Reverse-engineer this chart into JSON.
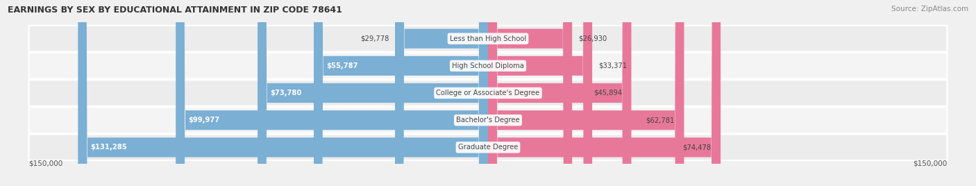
{
  "title": "EARNINGS BY SEX BY EDUCATIONAL ATTAINMENT IN ZIP CODE 78641",
  "source": "Source: ZipAtlas.com",
  "categories": [
    "Less than High School",
    "High School Diploma",
    "College or Associate's Degree",
    "Bachelor's Degree",
    "Graduate Degree"
  ],
  "male_values": [
    29778,
    55787,
    73780,
    99977,
    131285
  ],
  "female_values": [
    26930,
    33371,
    45894,
    62781,
    74478
  ],
  "male_color": "#7bafd4",
  "female_color": "#e8789a",
  "max_val": 150000,
  "row_colors": [
    "#ececec",
    "#f4f4f4",
    "#ececec",
    "#f4f4f4",
    "#ececec"
  ],
  "title_color": "#333333",
  "source_color": "#888888",
  "label_color": "#444444",
  "value_color_inside": "#444444",
  "value_color_white": "#ffffff"
}
